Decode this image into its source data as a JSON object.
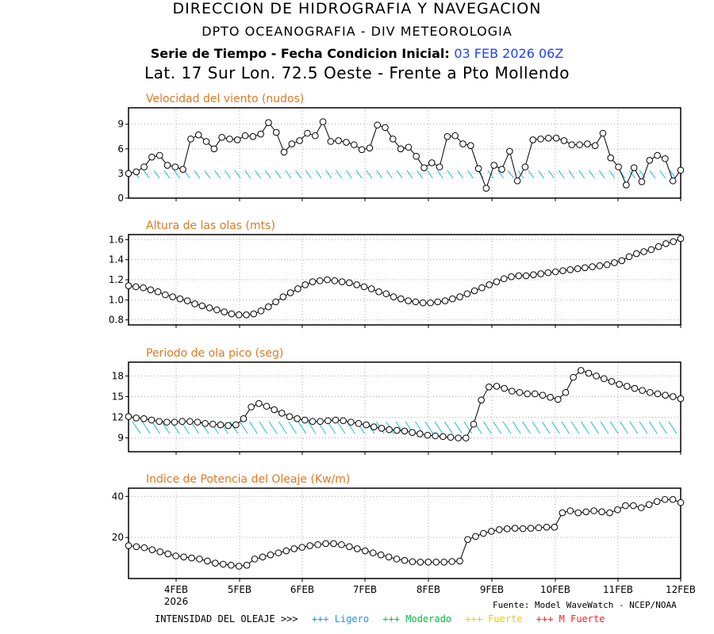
{
  "header": {
    "line1": "DIRECCION DE HIDROGRAFIA Y NAVEGACION",
    "line2": "DPTO OCEANOGRAFIA - DIV METEOROLOGIA",
    "line3_prefix": "Serie de Tiempo - Fecha Condicion Inicial:",
    "line3_date": "03 FEB 2026 06Z",
    "line4": "Lat. 17 Sur  Lon. 72.5 Oeste - Frente a Pto Mollendo"
  },
  "footer": {
    "source": "Fuente: Model WaveWatch - NCEP/NOAA",
    "intensity_label": "INTENSIDAD DEL OLEAJE >>>",
    "intensity_levels": [
      {
        "label": "+++ Ligero",
        "color": "#1e90ff"
      },
      {
        "label": "+++ Moderado",
        "color": "#00c040"
      },
      {
        "label": "+++ Fuerte",
        "color": "#e8d000"
      },
      {
        "label": "+++ M Fuerte",
        "color": "#ff2020"
      }
    ]
  },
  "colors": {
    "title": "#e07820",
    "arrow": "#20c0d0",
    "grid": "#aaaaaa",
    "line": "#000000"
  },
  "chart_data": [
    {
      "type": "line",
      "title": "Velocidad del viento (nudos)",
      "x_ticks": [
        "4FEB",
        "5FEB",
        "6FEB",
        "7FEB",
        "8FEB",
        "9FEB",
        "10FEB",
        "11FEB",
        "12FEB"
      ],
      "x_year": "2026",
      "ylim": [
        0,
        11
      ],
      "yticks": [
        0,
        3,
        6,
        9
      ],
      "values": [
        3,
        3.2,
        3.8,
        5,
        5.2,
        4,
        3.8,
        3.5,
        7.2,
        7.7,
        6.9,
        6,
        7.4,
        7.2,
        7.1,
        7.6,
        7.5,
        7.8,
        9.2,
        8,
        5.6,
        6.6,
        7,
        7.9,
        7.6,
        9.3,
        6.9,
        7,
        6.8,
        6.5,
        5.9,
        6.1,
        8.9,
        8.6,
        7.2,
        6,
        6.2,
        5.1,
        3.7,
        4.3,
        3.8,
        7.5,
        7.6,
        6.6,
        6.4,
        3.6,
        1.2,
        4,
        3.5,
        5.7,
        2.1,
        3.8,
        7.1,
        7.2,
        7.3,
        7.3,
        7,
        6.5,
        6.5,
        6.6,
        6.4,
        7.9,
        4.9,
        3.8,
        1.6,
        3.7,
        2,
        4.6,
        5.2,
        4.8,
        2.1,
        3.4
      ],
      "arrows": true
    },
    {
      "type": "line",
      "title": "Altura de las olas (mts)",
      "x_ticks": [
        "4FEB",
        "5FEB",
        "6FEB",
        "7FEB",
        "8FEB",
        "9FEB",
        "10FEB",
        "11FEB",
        "12FEB"
      ],
      "ylim": [
        0.75,
        1.65
      ],
      "yticks": [
        0.8,
        1.0,
        1.2,
        1.4,
        1.6
      ],
      "values": [
        1.14,
        1.13,
        1.12,
        1.1,
        1.08,
        1.05,
        1.03,
        1.01,
        0.99,
        0.96,
        0.94,
        0.92,
        0.9,
        0.88,
        0.86,
        0.85,
        0.85,
        0.86,
        0.89,
        0.93,
        0.98,
        1.03,
        1.07,
        1.11,
        1.15,
        1.18,
        1.19,
        1.2,
        1.19,
        1.18,
        1.17,
        1.15,
        1.13,
        1.11,
        1.08,
        1.06,
        1.03,
        1.01,
        0.99,
        0.98,
        0.97,
        0.97,
        0.98,
        0.99,
        1.01,
        1.03,
        1.06,
        1.09,
        1.12,
        1.15,
        1.18,
        1.21,
        1.23,
        1.24,
        1.24,
        1.25,
        1.26,
        1.27,
        1.28,
        1.29,
        1.3,
        1.31,
        1.32,
        1.33,
        1.34,
        1.35,
        1.37,
        1.39,
        1.43,
        1.46,
        1.48,
        1.5,
        1.53,
        1.56,
        1.58,
        1.61
      ]
    },
    {
      "type": "line",
      "title": "Periodo de ola pico (seg)",
      "x_ticks": [
        "4FEB",
        "5FEB",
        "6FEB",
        "7FEB",
        "8FEB",
        "9FEB",
        "10FEB",
        "11FEB",
        "12FEB"
      ],
      "ylim": [
        7,
        20
      ],
      "yticks": [
        9,
        12,
        15,
        18
      ],
      "values": [
        12.1,
        11.9,
        11.8,
        11.6,
        11.4,
        11.3,
        11.3,
        11.4,
        11.4,
        11.3,
        11.1,
        11,
        10.9,
        10.8,
        10.9,
        11.8,
        13.5,
        14,
        13.6,
        13.1,
        12.6,
        12.1,
        11.8,
        11.6,
        11.4,
        11.4,
        11.5,
        11.6,
        11.5,
        11.3,
        11.1,
        10.9,
        10.6,
        10.4,
        10.2,
        10.1,
        10,
        9.8,
        9.6,
        9.4,
        9.3,
        9.2,
        9.1,
        9,
        9,
        11,
        14.5,
        16.4,
        16.5,
        16.2,
        15.8,
        15.6,
        15.4,
        15.4,
        15.2,
        14.9,
        14.6,
        15.6,
        17.8,
        18.8,
        18.4,
        18,
        17.6,
        17.2,
        16.8,
        16.5,
        16.2,
        15.9,
        15.6,
        15.4,
        15.2,
        15,
        14.7
      ]
    },
    {
      "type": "line",
      "title": "Indice de Potencia del Oleaje (Kw/m)",
      "x_ticks": [
        "4FEB",
        "5FEB",
        "6FEB",
        "7FEB",
        "8FEB",
        "9FEB",
        "10FEB",
        "11FEB",
        "12FEB"
      ],
      "ylim": [
        0,
        44
      ],
      "yticks": [
        20,
        40
      ],
      "values": [
        16,
        15.5,
        15,
        14,
        13,
        12,
        11,
        10.5,
        10,
        9.5,
        8.5,
        7.5,
        7,
        6.5,
        6,
        6.5,
        9.5,
        10.5,
        11.5,
        12.5,
        13.5,
        14.5,
        15.2,
        16,
        16.5,
        17,
        17,
        16.5,
        15.5,
        14.5,
        13.5,
        12.5,
        11.5,
        10.5,
        9.5,
        8.8,
        8.2,
        8,
        8,
        8,
        8,
        8.3,
        8.5,
        19,
        20.5,
        22,
        23,
        23.8,
        24.2,
        24.5,
        24.3,
        24.5,
        24.7,
        25,
        25,
        32,
        33,
        32,
        32.5,
        33,
        32.5,
        32,
        33.5,
        35.5,
        35.5,
        34.5,
        36,
        37.5,
        38.5,
        38.5,
        37
      ]
    }
  ]
}
